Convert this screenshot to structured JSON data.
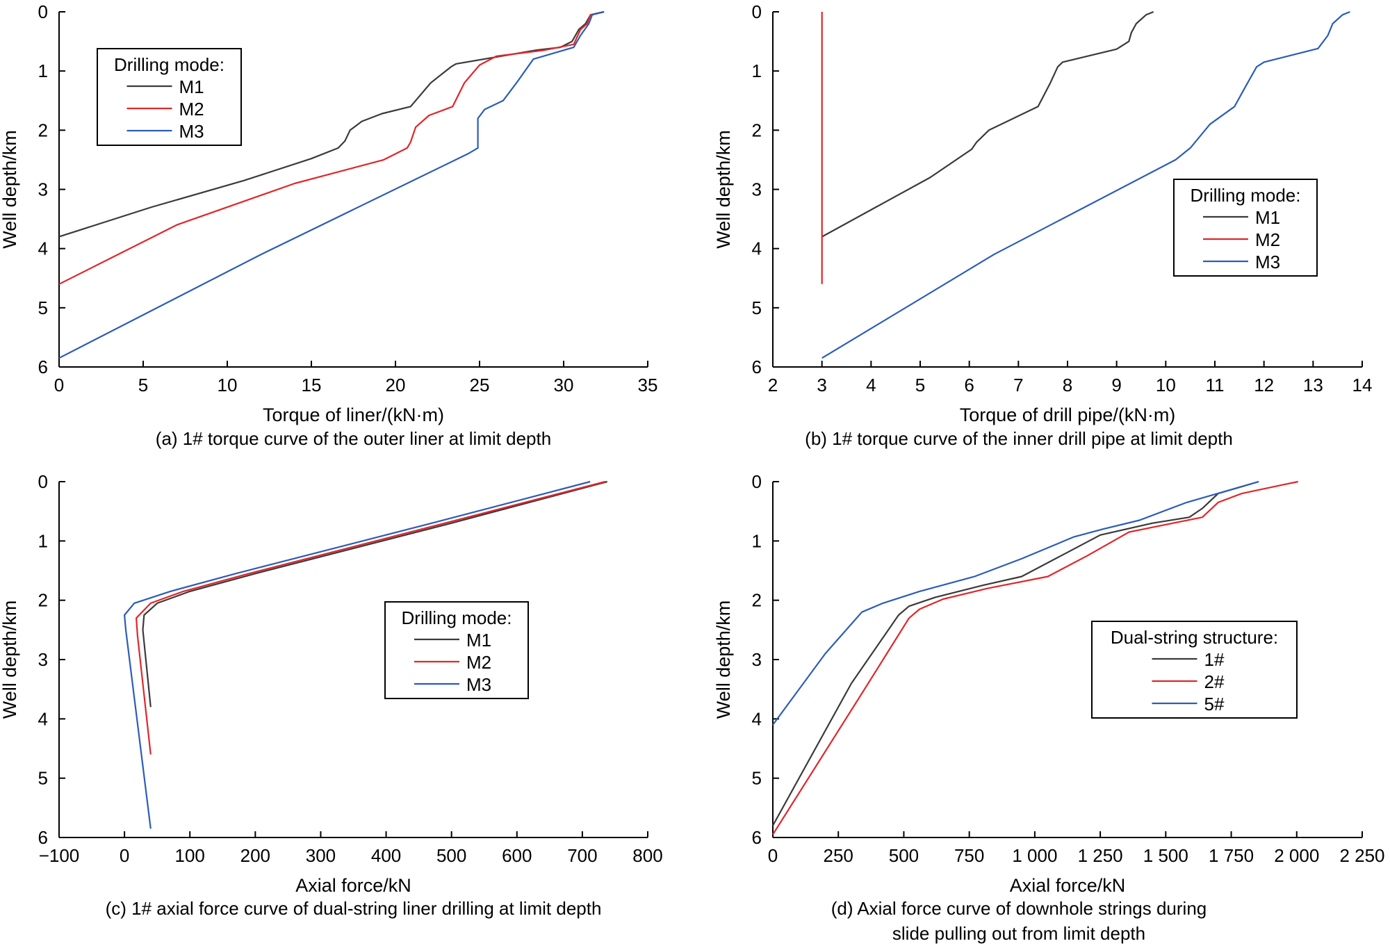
{
  "colors": {
    "M1": "#3a3a3a",
    "M2": "#e0262a",
    "M3": "#2b5cb8",
    "1#": "#3a3a3a",
    "2#": "#e0262a",
    "5#": "#2b5cb8"
  },
  "chart_data": [
    {
      "type": "line",
      "caption": "(a) 1# torque curve of the outer liner at limit depth",
      "xlabel": "Torque of liner/(kN·m)",
      "ylabel": "Well depth/km",
      "xlim": [
        0,
        35
      ],
      "ylim": [
        6,
        0
      ],
      "y_inverted": true,
      "xticks": [
        "0",
        "5",
        "10",
        "15",
        "20",
        "25",
        "30",
        "35"
      ],
      "yticks": [
        "0",
        "1",
        "2",
        "3",
        "4",
        "5",
        "6"
      ],
      "legend": {
        "title": "Drilling mode:",
        "position": "top-left"
      },
      "series": [
        {
          "name": "M1",
          "points": [
            [
              32.4,
              0
            ],
            [
              31.6,
              0.05
            ],
            [
              31.3,
              0.2
            ],
            [
              30.9,
              0.3
            ],
            [
              30.5,
              0.5
            ],
            [
              29.8,
              0.6
            ],
            [
              28.3,
              0.65
            ],
            [
              23.6,
              0.88
            ],
            [
              23.3,
              0.93
            ],
            [
              22.1,
              1.2
            ],
            [
              20.9,
              1.6
            ],
            [
              19.2,
              1.72
            ],
            [
              18.0,
              1.85
            ],
            [
              17.3,
              2.0
            ],
            [
              17.0,
              2.18
            ],
            [
              16.6,
              2.3
            ],
            [
              15.0,
              2.48
            ],
            [
              11.0,
              2.85
            ],
            [
              5.5,
              3.3
            ],
            [
              0,
              3.8
            ]
          ]
        },
        {
          "name": "M2",
          "points": [
            [
              32.4,
              0
            ],
            [
              31.6,
              0.05
            ],
            [
              31.4,
              0.2
            ],
            [
              31.0,
              0.3
            ],
            [
              30.6,
              0.55
            ],
            [
              28.8,
              0.65
            ],
            [
              26.0,
              0.75
            ],
            [
              25.0,
              0.9
            ],
            [
              24.1,
              1.2
            ],
            [
              23.4,
              1.6
            ],
            [
              22.0,
              1.75
            ],
            [
              21.2,
              1.95
            ],
            [
              20.9,
              2.2
            ],
            [
              20.7,
              2.3
            ],
            [
              19.3,
              2.5
            ],
            [
              14.0,
              2.9
            ],
            [
              7.0,
              3.6
            ],
            [
              0,
              4.6
            ]
          ]
        },
        {
          "name": "M3",
          "points": [
            [
              32.4,
              0
            ],
            [
              31.7,
              0.05
            ],
            [
              31.5,
              0.2
            ],
            [
              31.0,
              0.4
            ],
            [
              30.6,
              0.6
            ],
            [
              28.2,
              0.8
            ],
            [
              27.2,
              1.2
            ],
            [
              26.4,
              1.5
            ],
            [
              25.3,
              1.65
            ],
            [
              24.9,
              1.8
            ],
            [
              24.9,
              2.1
            ],
            [
              24.9,
              2.3
            ],
            [
              24.3,
              2.4
            ],
            [
              12.0,
              4.1
            ],
            [
              0,
              5.85
            ]
          ]
        }
      ]
    },
    {
      "type": "line",
      "caption": "(b) 1# torque curve of the inner drill pipe at limit depth",
      "xlabel": "Torque of drill pipe/(kN·m)",
      "ylabel": "Well depth/km",
      "xlim": [
        2,
        14
      ],
      "ylim": [
        6,
        0
      ],
      "y_inverted": true,
      "xticks": [
        "2",
        "3",
        "4",
        "5",
        "6",
        "7",
        "8",
        "9",
        "10",
        "11",
        "12",
        "13",
        "14"
      ],
      "yticks": [
        "0",
        "1",
        "2",
        "3",
        "4",
        "5",
        "6"
      ],
      "legend": {
        "title": "Drilling mode:",
        "position": "middle-right"
      },
      "series": [
        {
          "name": "M1",
          "points": [
            [
              9.75,
              0
            ],
            [
              9.6,
              0.05
            ],
            [
              9.4,
              0.2
            ],
            [
              9.3,
              0.35
            ],
            [
              9.25,
              0.5
            ],
            [
              9.0,
              0.63
            ],
            [
              7.9,
              0.85
            ],
            [
              7.8,
              0.93
            ],
            [
              7.65,
              1.2
            ],
            [
              7.4,
              1.6
            ],
            [
              6.9,
              1.8
            ],
            [
              6.4,
              2.0
            ],
            [
              6.15,
              2.2
            ],
            [
              6.05,
              2.32
            ],
            [
              5.2,
              2.8
            ],
            [
              4.1,
              3.3
            ],
            [
              3.0,
              3.8
            ]
          ]
        },
        {
          "name": "M2",
          "points": [
            [
              3.0,
              0
            ],
            [
              3.0,
              4.6
            ]
          ]
        },
        {
          "name": "M3",
          "points": [
            [
              13.75,
              0
            ],
            [
              13.6,
              0.05
            ],
            [
              13.4,
              0.2
            ],
            [
              13.3,
              0.4
            ],
            [
              13.1,
              0.62
            ],
            [
              12.0,
              0.85
            ],
            [
              11.85,
              0.93
            ],
            [
              11.6,
              1.3
            ],
            [
              11.4,
              1.6
            ],
            [
              10.9,
              1.9
            ],
            [
              10.5,
              2.3
            ],
            [
              10.2,
              2.5
            ],
            [
              6.5,
              4.1
            ],
            [
              3.0,
              5.85
            ]
          ]
        }
      ]
    },
    {
      "type": "line",
      "caption": "(c) 1# axial force curve of dual-string liner drilling at limit depth",
      "xlabel": "Axial force/kN",
      "ylabel": "Well depth/km",
      "xlim": [
        -100,
        800
      ],
      "ylim": [
        6,
        0
      ],
      "y_inverted": true,
      "xticks": [
        "−100",
        "0",
        "100",
        "200",
        "300",
        "400",
        "500",
        "600",
        "700",
        "800"
      ],
      "yticks": [
        "0",
        "1",
        "2",
        "3",
        "4",
        "5",
        "6"
      ],
      "legend": {
        "title": "Drilling mode:",
        "position": "middle-right"
      },
      "series": [
        {
          "name": "M1",
          "points": [
            [
              738,
              0
            ],
            [
              500,
              0.7
            ],
            [
              200,
              1.55
            ],
            [
              100,
              1.85
            ],
            [
              50,
              2.05
            ],
            [
              30,
              2.25
            ],
            [
              28,
              2.5
            ],
            [
              40,
              3.8
            ]
          ]
        },
        {
          "name": "M2",
          "points": [
            [
              735,
              0
            ],
            [
              490,
              0.7
            ],
            [
              190,
              1.55
            ],
            [
              90,
              1.85
            ],
            [
              40,
              2.05
            ],
            [
              18,
              2.3
            ],
            [
              20,
              2.6
            ],
            [
              40,
              4.6
            ]
          ]
        },
        {
          "name": "M3",
          "points": [
            [
              712,
              0
            ],
            [
              470,
              0.7
            ],
            [
              170,
              1.55
            ],
            [
              70,
              1.85
            ],
            [
              15,
              2.05
            ],
            [
              0,
              2.25
            ],
            [
              2,
              2.5
            ],
            [
              40,
              5.85
            ]
          ]
        }
      ]
    },
    {
      "type": "line",
      "caption": "(d) Axial force curve of downhole strings during slide pulling out from limit depth",
      "caption_lines": [
        "(d) Axial force curve of downhole strings during",
        "slide pulling out from limit depth"
      ],
      "xlabel": "Axial force/kN",
      "ylabel": "Well depth/km",
      "xlim": [
        0,
        2250
      ],
      "ylim": [
        6,
        0
      ],
      "y_inverted": true,
      "xticks": [
        "0",
        "250",
        "500",
        "750",
        "1 000",
        "1 250",
        "1 500",
        "1 750",
        "2 000",
        "2 250"
      ],
      "yticks": [
        "0",
        "1",
        "2",
        "3",
        "4",
        "5",
        "6"
      ],
      "legend": {
        "title": "Dual-string structure:",
        "position": "middle-right"
      },
      "series": [
        {
          "name": "1#",
          "points": [
            [
              1855,
              0
            ],
            [
              1700,
              0.2
            ],
            [
              1640,
              0.45
            ],
            [
              1590,
              0.6
            ],
            [
              1450,
              0.7
            ],
            [
              1250,
              0.9
            ],
            [
              1100,
              1.25
            ],
            [
              950,
              1.6
            ],
            [
              800,
              1.75
            ],
            [
              620,
              1.95
            ],
            [
              520,
              2.1
            ],
            [
              480,
              2.25
            ],
            [
              300,
              3.4
            ],
            [
              0,
              5.8
            ]
          ]
        },
        {
          "name": "2#",
          "points": [
            [
              2005,
              0
            ],
            [
              1950,
              0.05
            ],
            [
              1790,
              0.2
            ],
            [
              1700,
              0.35
            ],
            [
              1640,
              0.6
            ],
            [
              1360,
              0.85
            ],
            [
              1340,
              0.9
            ],
            [
              1200,
              1.25
            ],
            [
              1050,
              1.6
            ],
            [
              820,
              1.8
            ],
            [
              650,
              1.98
            ],
            [
              560,
              2.15
            ],
            [
              520,
              2.3
            ],
            [
              350,
              3.5
            ],
            [
              0,
              5.95
            ]
          ]
        },
        {
          "name": "5#",
          "points": [
            [
              1855,
              0
            ],
            [
              1580,
              0.35
            ],
            [
              1400,
              0.65
            ],
            [
              1260,
              0.8
            ],
            [
              1150,
              0.93
            ],
            [
              950,
              1.3
            ],
            [
              770,
              1.6
            ],
            [
              560,
              1.85
            ],
            [
              420,
              2.05
            ],
            [
              340,
              2.2
            ],
            [
              200,
              2.9
            ],
            [
              0,
              4.1
            ]
          ]
        }
      ]
    }
  ]
}
